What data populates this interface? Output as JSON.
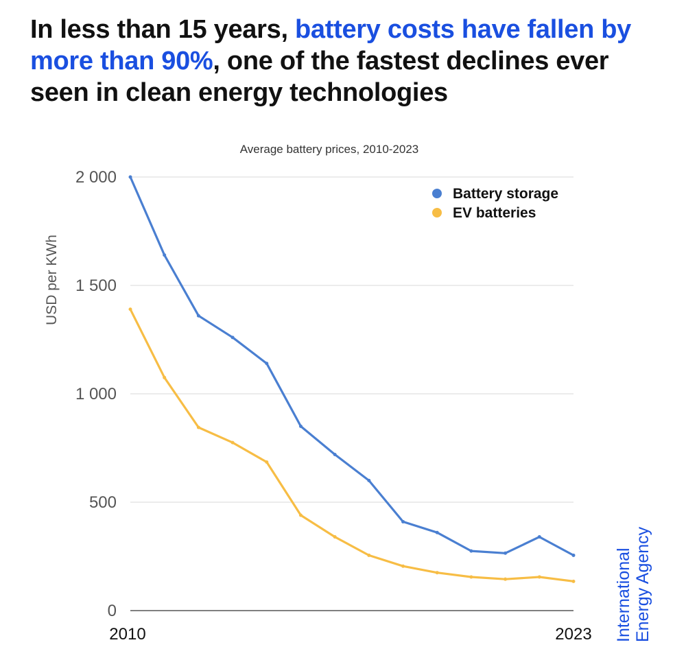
{
  "headline": {
    "part1": "In less than 15 years, ",
    "highlight": "battery costs have fallen by more than 90%",
    "part2": ", one of the fastest declines ever seen in clean energy technologies"
  },
  "brand": {
    "line1": "International",
    "line2": "Energy Agency"
  },
  "colors": {
    "highlight": "#1a4fe0",
    "storage": "#4a7fd1",
    "ev": "#f7bd45",
    "grid": "#d9d9d9"
  },
  "chart_data": {
    "type": "line",
    "title": "Average battery prices, 2010-2023",
    "ylabel": "USD per KWh",
    "xlabel": "",
    "x": [
      2010,
      2011,
      2012,
      2013,
      2014,
      2015,
      2016,
      2017,
      2018,
      2019,
      2020,
      2021,
      2022,
      2023
    ],
    "x_tick_labels": [
      "2010",
      "2023"
    ],
    "ylim": [
      0,
      2000
    ],
    "y_ticks": [
      0,
      500,
      1000,
      1500,
      2000
    ],
    "y_tick_labels": [
      "0",
      "500",
      "1 000",
      "1 500",
      "2 000"
    ],
    "grid": true,
    "legend_position": "top-right",
    "series": [
      {
        "name": "Battery storage",
        "color": "#4a7fd1",
        "values": [
          2000,
          1640,
          1360,
          1260,
          1140,
          850,
          720,
          600,
          410,
          360,
          275,
          265,
          340,
          255
        ]
      },
      {
        "name": "EV batteries",
        "color": "#f7bd45",
        "values": [
          1390,
          1075,
          845,
          775,
          685,
          440,
          340,
          255,
          205,
          175,
          155,
          145,
          155,
          135
        ]
      }
    ]
  }
}
